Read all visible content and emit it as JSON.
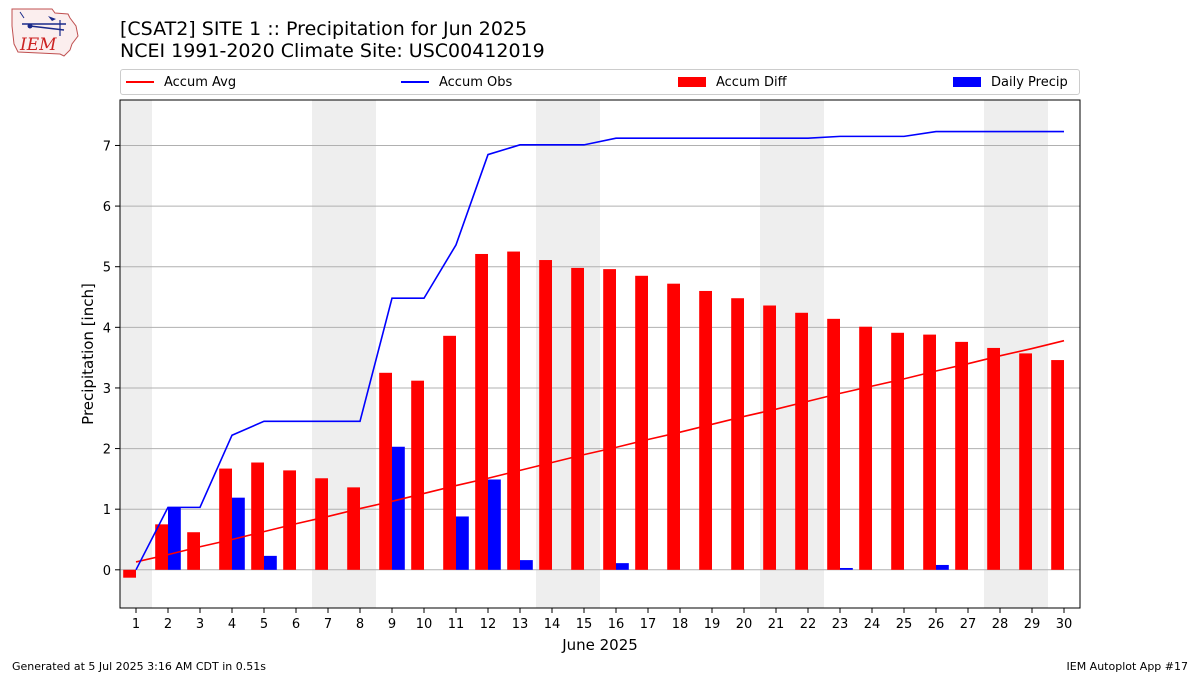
{
  "header": {
    "title_line1": "[CSAT2] SITE 1 :: Precipitation for Jun 2025",
    "title_line2": "NCEI 1991-2020 Climate Site: USC00412019",
    "logo_text": "IEM"
  },
  "legend": [
    {
      "label": "Accum Avg",
      "kind": "line",
      "color": "#ff0000"
    },
    {
      "label": "Accum Obs",
      "kind": "line",
      "color": "#0000ff"
    },
    {
      "label": "Accum Diff",
      "kind": "bar",
      "color": "#ff0000"
    },
    {
      "label": "Daily Precip",
      "kind": "bar",
      "color": "#0000ff"
    }
  ],
  "footer": {
    "left": "Generated at 5 Jul 2025 3:16 AM CDT in 0.51s",
    "right": "IEM Autoplot App #17"
  },
  "chart_data": {
    "type": "bar",
    "xlabel": "June 2025",
    "ylabel": "Precipitation [inch]",
    "xlim": [
      0.5,
      30.5
    ],
    "ylim": [
      -0.63,
      7.75
    ],
    "yticks": [
      0,
      1,
      2,
      3,
      4,
      5,
      6,
      7
    ],
    "days": [
      1,
      2,
      3,
      4,
      5,
      6,
      7,
      8,
      9,
      10,
      11,
      12,
      13,
      14,
      15,
      16,
      17,
      18,
      19,
      20,
      21,
      22,
      23,
      24,
      25,
      26,
      27,
      28,
      29,
      30
    ],
    "weekend_days": [
      1,
      7,
      8,
      14,
      15,
      21,
      22,
      28,
      29
    ],
    "series": [
      {
        "name": "Accum Avg",
        "type": "line",
        "color": "#ff0000",
        "values": [
          0.13,
          0.25,
          0.38,
          0.5,
          0.63,
          0.76,
          0.88,
          1.01,
          1.13,
          1.26,
          1.39,
          1.51,
          1.64,
          1.77,
          1.9,
          2.02,
          2.15,
          2.27,
          2.4,
          2.53,
          2.65,
          2.78,
          2.91,
          3.03,
          3.15,
          3.28,
          3.4,
          3.53,
          3.65,
          3.78
        ]
      },
      {
        "name": "Accum Obs",
        "type": "line",
        "color": "#0000ff",
        "values": [
          0.0,
          1.03,
          1.03,
          2.22,
          2.45,
          2.45,
          2.45,
          2.45,
          4.48,
          4.48,
          5.36,
          6.85,
          7.01,
          7.01,
          7.01,
          7.12,
          7.12,
          7.12,
          7.12,
          7.12,
          7.12,
          7.12,
          7.15,
          7.15,
          7.15,
          7.23,
          7.23,
          7.23,
          7.23,
          7.23
        ]
      },
      {
        "name": "Accum Diff",
        "type": "bar",
        "color": "#ff0000",
        "values": [
          -0.13,
          0.75,
          0.62,
          1.67,
          1.77,
          1.64,
          1.51,
          1.36,
          3.25,
          3.12,
          3.86,
          5.21,
          5.25,
          5.11,
          4.98,
          4.96,
          4.85,
          4.72,
          4.6,
          4.48,
          4.36,
          4.24,
          4.14,
          4.01,
          3.91,
          3.88,
          3.76,
          3.66,
          3.57,
          3.46
        ]
      },
      {
        "name": "Daily Precip",
        "type": "bar",
        "color": "#0000ff",
        "values": [
          0.0,
          1.03,
          0.0,
          1.19,
          0.23,
          0.0,
          0.0,
          0.0,
          2.03,
          0.0,
          0.88,
          1.49,
          0.16,
          0.0,
          0.0,
          0.11,
          0.0,
          0.0,
          0.0,
          0.0,
          0.0,
          0.0,
          0.03,
          0.0,
          0.0,
          0.08,
          0.0,
          0.0,
          0.0,
          0.0
        ]
      }
    ]
  }
}
